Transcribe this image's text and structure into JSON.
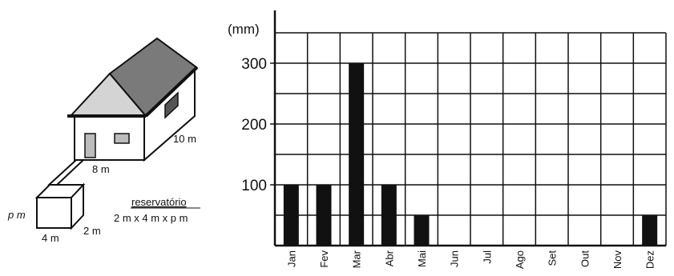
{
  "illustration": {
    "house_depth_label": "10 m",
    "house_width_label": "8 m",
    "tank_height_label": "p m",
    "tank_width_label": "4 m",
    "tank_depth_label": "2 m",
    "reservoir_title": "reservatório",
    "reservoir_dims": "2 m x 4 m x p  m"
  },
  "chart_data": {
    "type": "bar",
    "ylabel": "(mm)",
    "categories": [
      "Jan",
      "Fev",
      "Mar",
      "Abr",
      "Mai",
      "Jun",
      "Jul",
      "Ago",
      "Set",
      "Out",
      "Nov",
      "Dez"
    ],
    "values": [
      100,
      100,
      300,
      100,
      50,
      0,
      0,
      0,
      0,
      0,
      0,
      50
    ],
    "ylim": [
      0,
      350
    ],
    "yticks": [
      100,
      200,
      300
    ],
    "grid": true,
    "bar_color": "#111111"
  }
}
